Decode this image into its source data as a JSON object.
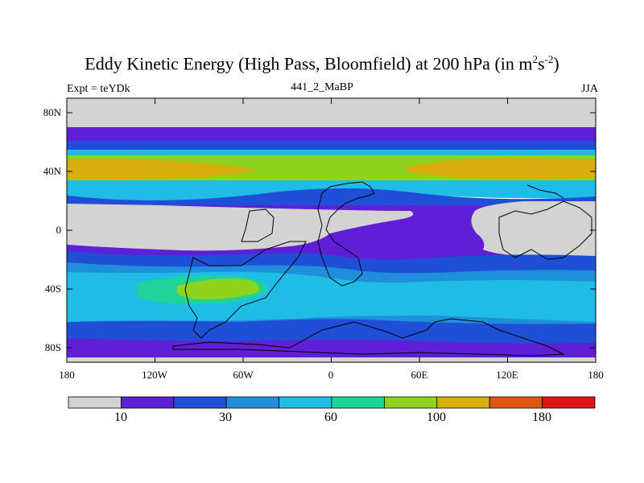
{
  "title": {
    "main": "Eddy Kinetic Energy (High Pass, Bloomfield) at 200 hPa (in m",
    "sup1": "2",
    "mid": "s",
    "sup2": "-2",
    "end": ")"
  },
  "experiment_label": "Expt = teYDk",
  "run_label": "441_2_MaBP",
  "season": "JJA",
  "axes": {
    "lat_ticks": [
      "80N",
      "40N",
      "0",
      "40S",
      "80S"
    ],
    "lon_ticks": [
      "180",
      "120W",
      "60W",
      "0",
      "60E",
      "120E",
      "180"
    ]
  },
  "colorbar": {
    "colors": [
      "#d3d3d3",
      "#5e1fd6",
      "#1e4fd6",
      "#1f8fdb",
      "#1fbde6",
      "#1fd49a",
      "#8ed41f",
      "#d9ae0f",
      "#e0560f",
      "#e01515"
    ],
    "labels": [
      "10",
      "30",
      "60",
      "100",
      "180"
    ]
  },
  "chart_data": {
    "type": "heatmap",
    "title": "Eddy Kinetic Energy (High Pass, Bloomfield) at 200 hPa (in m^2s^-2)",
    "projection": "cylindrical equidistant",
    "xlim": [
      -180,
      180
    ],
    "ylim": [
      -90,
      90
    ],
    "x_ticks": [
      "180",
      "120W",
      "60W",
      "0",
      "60E",
      "120E",
      "180"
    ],
    "y_ticks": [
      "80N",
      "40N",
      "0",
      "40S",
      "80S"
    ],
    "colorbar_labels": [
      "10",
      "30",
      "60",
      "100",
      "180"
    ],
    "color_levels": 10,
    "season": "JJA",
    "experiment": "teYDk",
    "run": "441_2_MaBP"
  }
}
